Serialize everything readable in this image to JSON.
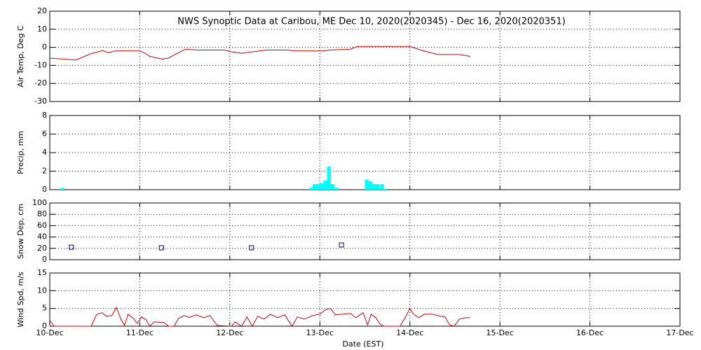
{
  "x_axis": {
    "label": "Date (EST)",
    "xlim": [
      0,
      7
    ],
    "xticks": [
      {
        "value": 0,
        "label": "10-Dec"
      },
      {
        "value": 1,
        "label": "11-Dec"
      },
      {
        "value": 2,
        "label": "12-Dec"
      },
      {
        "value": 3,
        "label": "13-Dec"
      },
      {
        "value": 4,
        "label": "14-Dec"
      },
      {
        "value": 5,
        "label": "15-Dec"
      },
      {
        "value": 6,
        "label": "16-Dec"
      },
      {
        "value": 7,
        "label": "17-Dec"
      }
    ]
  },
  "chart_data": [
    {
      "type": "line",
      "title": "NWS Synoptic Data at Caribou, ME    Dec 10, 2020(2020345) - Dec 16, 2020(2020351)",
      "ylabel": "Air Temp, Deg C",
      "color": "#d00000",
      "grid": true,
      "x": [
        0,
        0.15,
        0.29,
        0.46,
        0.59,
        0.65,
        0.73,
        1.0,
        1.05,
        1.11,
        1.2,
        1.25,
        1.32,
        1.39,
        1.51,
        1.63,
        1.94,
        2.02,
        2.13,
        2.25,
        2.41,
        2.64,
        2.72,
        3.03,
        3.11,
        3.34,
        3.42,
        3.54,
        4.0,
        4.12,
        4.31,
        4.55,
        4.67
      ],
      "values": [
        -6,
        -6.5,
        -7,
        -3.5,
        -1.8,
        -3,
        -2,
        -2,
        -3,
        -5,
        -6,
        -6.5,
        -6,
        -4,
        -1,
        -1.5,
        -1.5,
        -2.5,
        -3.3,
        -2.5,
        -1.5,
        -1.5,
        -2,
        -2,
        -1.5,
        -1,
        0.5,
        0.5,
        0.5,
        -1.5,
        -4,
        -4,
        -5
      ],
      "ylim": [
        -30,
        20
      ],
      "yticks": [
        -30,
        -20,
        -10,
        0,
        10,
        20
      ]
    },
    {
      "type": "bar",
      "ylabel": "Precip, mm",
      "color": "#00ffff",
      "grid": true,
      "x": [
        0.12,
        2.88,
        2.92,
        2.96,
        3.0,
        3.04,
        3.08,
        3.12,
        3.17,
        3.5,
        3.54,
        3.58,
        3.62,
        3.67,
        3.71
      ],
      "values": [
        0.2,
        0.2,
        0.6,
        0.6,
        0.7,
        1.0,
        2.5,
        0.6,
        0.2,
        1.1,
        0.9,
        0.6,
        0.6,
        0.6,
        0.1
      ],
      "ylim": [
        0,
        8
      ],
      "yticks": [
        0,
        2,
        4,
        6,
        8
      ]
    },
    {
      "type": "scatter",
      "ylabel": "Snow Dep, cm",
      "color": "#000080",
      "grid": true,
      "x": [
        0.24,
        1.24,
        2.24,
        3.24
      ],
      "values": [
        22,
        21,
        21,
        26
      ],
      "ylim": [
        0,
        100
      ],
      "yticks": [
        0,
        20,
        40,
        60,
        80,
        100
      ]
    },
    {
      "type": "line",
      "ylabel": "Wind Spd, m/s",
      "color": "#d00000",
      "grid": true,
      "x": [
        0,
        0.05,
        0.46,
        0.52,
        0.58,
        0.63,
        0.69,
        0.74,
        0.79,
        0.83,
        0.87,
        0.93,
        0.97,
        1.02,
        1.07,
        1.11,
        1.16,
        1.27,
        1.32,
        1.38,
        1.43,
        1.49,
        1.55,
        1.63,
        1.71,
        1.78,
        1.86,
        2.02,
        2.06,
        2.13,
        2.19,
        2.25,
        2.31,
        2.38,
        2.45,
        2.53,
        2.61,
        2.69,
        2.75,
        2.83,
        2.92,
        3.0,
        3.06,
        3.12,
        3.17,
        3.26,
        3.34,
        3.4,
        3.48,
        3.53,
        3.57,
        3.62,
        3.67,
        3.71,
        3.89,
        3.95,
        4.0,
        4.04,
        4.1,
        4.16,
        4.24,
        4.31,
        4.39,
        4.44,
        4.49,
        4.55,
        4.62,
        4.67
      ],
      "values": [
        1.6,
        0,
        0,
        3.3,
        3.8,
        2.8,
        3.0,
        5.3,
        2.0,
        0.2,
        3.4,
        2.2,
        0.8,
        2.6,
        1.8,
        0,
        1.2,
        1.0,
        0,
        0,
        2.2,
        3.0,
        2.5,
        3.2,
        2.4,
        3.0,
        0.2,
        0,
        1.2,
        0,
        2.6,
        0,
        2.8,
        2.0,
        3.4,
        2.4,
        3.2,
        0,
        2.6,
        2.0,
        3.0,
        3.4,
        4.6,
        5.0,
        3.2,
        3.4,
        3.6,
        2.4,
        3.8,
        0.4,
        3.4,
        2.4,
        0.6,
        0,
        0,
        2.5,
        5.0,
        3.4,
        2.4,
        3.4,
        3.4,
        3.0,
        2.6,
        0.4,
        0,
        2.0,
        2.4,
        2.4
      ],
      "ylim": [
        0,
        15
      ],
      "yticks": [
        0,
        5,
        10,
        15
      ]
    }
  ]
}
